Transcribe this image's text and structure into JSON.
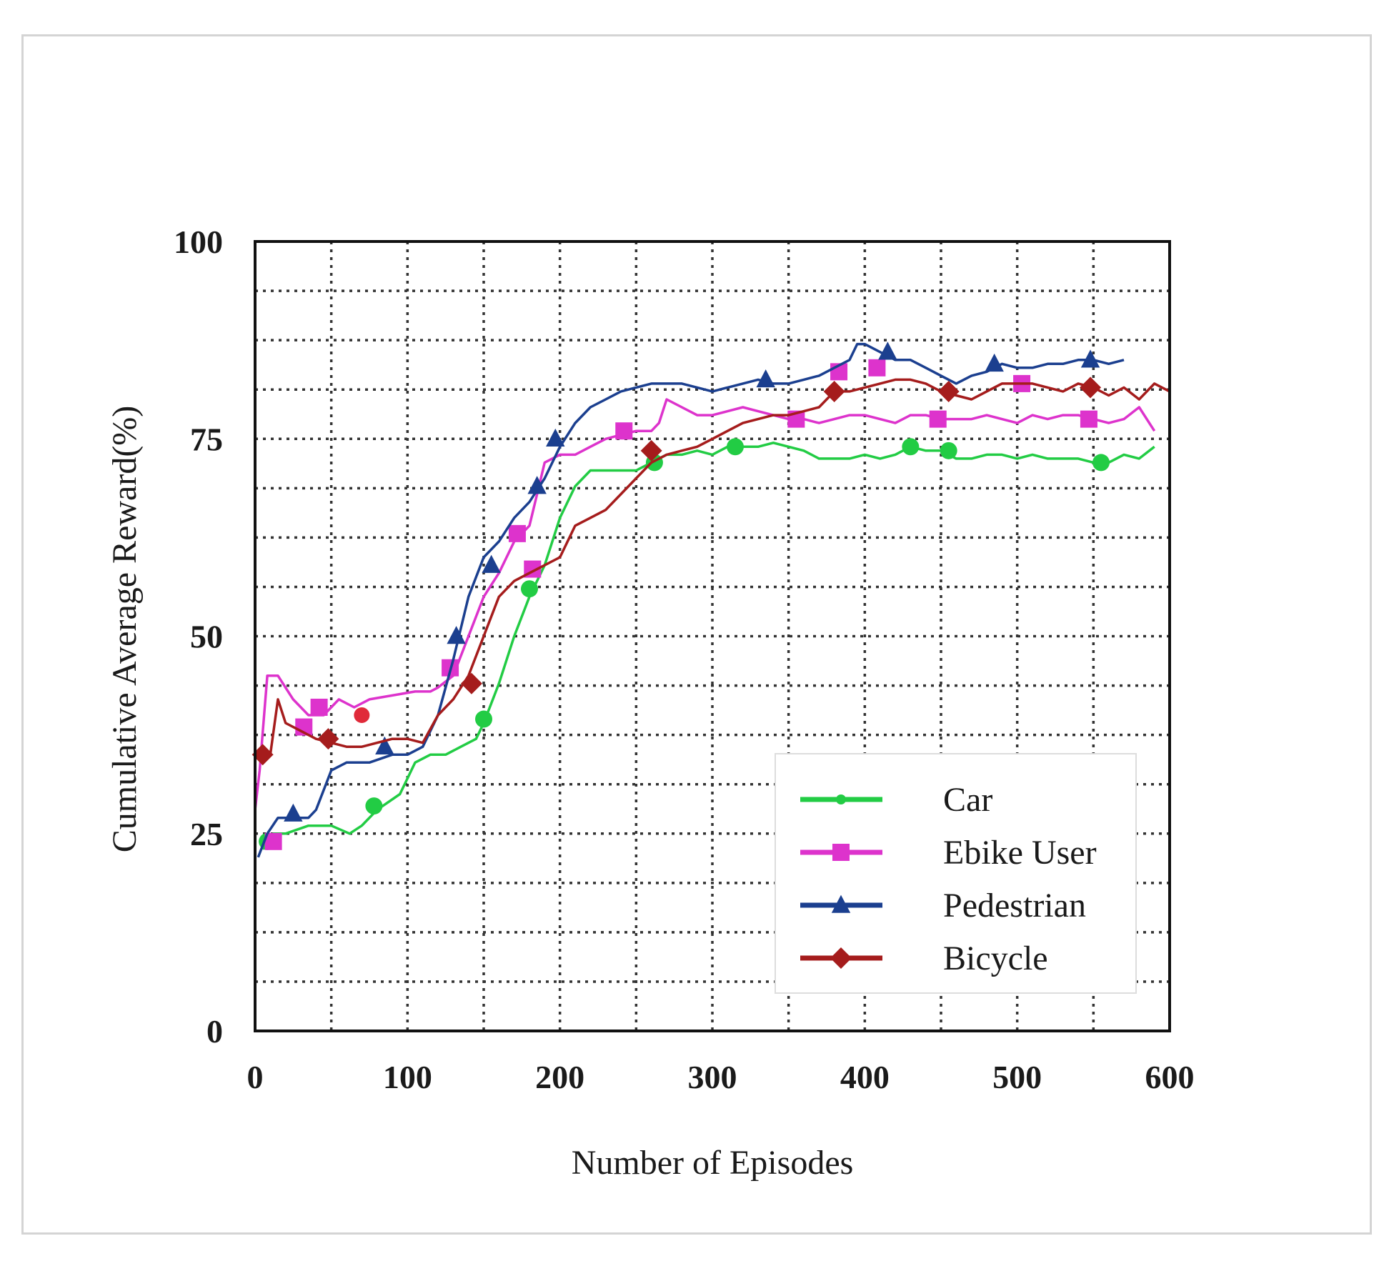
{
  "chart_data": {
    "type": "line",
    "title": "",
    "xlabel": "Number of Episodes",
    "ylabel": "Cumulative Average Reward(%)",
    "xlim": [
      0,
      600
    ],
    "ylim": [
      0,
      100
    ],
    "x_ticks": [
      0,
      100,
      200,
      300,
      400,
      500,
      600
    ],
    "x_tick_labels": [
      "0",
      "100",
      "200",
      "300",
      "400",
      "500",
      "600"
    ],
    "y_ticks": [
      0,
      25,
      50,
      75,
      100
    ],
    "y_tick_labels": [
      "0",
      "25",
      "50",
      "75",
      "100"
    ],
    "x_grid_step": 50,
    "y_grid_step": 6.25,
    "grid": true,
    "legend_position": "bottom-right",
    "series": [
      {
        "name": "Car",
        "color": "#22cc44",
        "marker": "circle",
        "x": [
          5,
          12,
          20,
          35,
          50,
          62,
          70,
          80,
          95,
          105,
          115,
          125,
          135,
          145,
          150,
          160,
          170,
          180,
          190,
          200,
          210,
          220,
          230,
          240,
          250,
          260,
          270,
          280,
          290,
          300,
          310,
          320,
          330,
          340,
          350,
          360,
          370,
          380,
          390,
          400,
          410,
          420,
          430,
          440,
          450,
          460,
          470,
          480,
          490,
          500,
          510,
          520,
          530,
          540,
          550,
          560,
          570,
          580,
          590
        ],
        "y": [
          23,
          25,
          25,
          26,
          26,
          25,
          26,
          28,
          30,
          34,
          35,
          35,
          36,
          37,
          39,
          44,
          50,
          55,
          59,
          65,
          69,
          71,
          71,
          71,
          71,
          72,
          73,
          73,
          73.5,
          73,
          74,
          74,
          74,
          74.5,
          74,
          73.5,
          72.5,
          72.5,
          72.5,
          73,
          72.5,
          73,
          74,
          73.5,
          73.5,
          72.5,
          72.5,
          73,
          73,
          72.5,
          73,
          72.5,
          72.5,
          72.5,
          72,
          72,
          73,
          72.5,
          74
        ],
        "marker_x": [
          8,
          78,
          150,
          180,
          262,
          315,
          430,
          455,
          555
        ],
        "marker_y": [
          24,
          28.5,
          39.5,
          56,
          72,
          74,
          74,
          73.5,
          72
        ]
      },
      {
        "name": "Ebike User",
        "color": "#dd33cc",
        "marker": "square",
        "x": [
          0,
          3,
          8,
          15,
          25,
          35,
          45,
          55,
          65,
          75,
          90,
          105,
          115,
          120,
          130,
          140,
          150,
          160,
          170,
          180,
          185,
          190,
          200,
          210,
          220,
          230,
          240,
          250,
          260,
          265,
          270,
          280,
          290,
          300,
          310,
          320,
          330,
          340,
          350,
          360,
          370,
          380,
          390,
          400,
          410,
          420,
          430,
          440,
          450,
          460,
          470,
          480,
          490,
          500,
          510,
          520,
          530,
          540,
          550,
          560,
          570,
          580,
          590
        ],
        "y": [
          28,
          33,
          45,
          45,
          42,
          40,
          40,
          42,
          41,
          42,
          42.5,
          43,
          43,
          43.5,
          45,
          50,
          55,
          58,
          62,
          64,
          68,
          72,
          73,
          73,
          74,
          75,
          75.5,
          76,
          76,
          77,
          80,
          79,
          78,
          78,
          78.5,
          79,
          78.5,
          78,
          77.5,
          77.5,
          77,
          77.5,
          78,
          78,
          77.5,
          77,
          78,
          78,
          77.5,
          77.5,
          77.5,
          78,
          77.5,
          77,
          78,
          77.5,
          78,
          78,
          77.5,
          77,
          77.5,
          79,
          76
        ],
        "marker_x": [
          12,
          32,
          42,
          128,
          172,
          182,
          242,
          355,
          383,
          408,
          448,
          503,
          547
        ],
        "marker_y": [
          24,
          38.5,
          41,
          46,
          63,
          58.5,
          76,
          77.5,
          83.5,
          84,
          77.5,
          82,
          77.5
        ],
        "extra_marker_x": [
          70
        ],
        "extra_marker_y": [
          40
        ]
      },
      {
        "name": "Pedestrian",
        "color": "#1b3f8f",
        "marker": "triangle",
        "x": [
          2,
          8,
          15,
          25,
          35,
          40,
          50,
          60,
          75,
          90,
          100,
          110,
          120,
          130,
          140,
          150,
          160,
          170,
          180,
          190,
          200,
          210,
          220,
          230,
          240,
          250,
          260,
          270,
          280,
          290,
          300,
          310,
          320,
          330,
          340,
          350,
          360,
          370,
          380,
          390,
          395,
          400,
          410,
          420,
          430,
          440,
          450,
          460,
          470,
          480,
          490,
          500,
          510,
          520,
          530,
          540,
          550,
          560,
          570
        ],
        "y": [
          22,
          25,
          27,
          27,
          27,
          28,
          33,
          34,
          34,
          35,
          35,
          36,
          40,
          47,
          55,
          60,
          62,
          65,
          67,
          70,
          74,
          77,
          79,
          80,
          81,
          81.5,
          82,
          82,
          82,
          81.5,
          81,
          81.5,
          82,
          82.5,
          82,
          82,
          82.5,
          83,
          84,
          85,
          87,
          87,
          86,
          85,
          85,
          84,
          83,
          82,
          83,
          83.5,
          84.5,
          84,
          84,
          84.5,
          84.5,
          85,
          85,
          84.5,
          85
        ],
        "marker_x": [
          25,
          85,
          132,
          155,
          185,
          197,
          335,
          415,
          485,
          548
        ],
        "marker_y": [
          27.5,
          36,
          50,
          59,
          69,
          75,
          82.5,
          86,
          84.5,
          85
        ]
      },
      {
        "name": "Bicycle",
        "color": "#a51c1c",
        "marker": "diamond",
        "x": [
          0,
          5,
          10,
          15,
          20,
          30,
          40,
          50,
          60,
          70,
          80,
          90,
          100,
          110,
          120,
          130,
          140,
          150,
          160,
          170,
          180,
          190,
          200,
          210,
          220,
          230,
          240,
          250,
          260,
          270,
          280,
          290,
          300,
          310,
          320,
          330,
          340,
          350,
          360,
          370,
          380,
          390,
          400,
          410,
          420,
          430,
          440,
          450,
          460,
          470,
          480,
          490,
          500,
          510,
          520,
          530,
          540,
          550,
          560,
          570,
          580,
          590,
          600
        ],
        "y": [
          35,
          34,
          35,
          42,
          39,
          38,
          37,
          36.5,
          36,
          36,
          36.5,
          37,
          37,
          36.5,
          40,
          42,
          45,
          50,
          55,
          57,
          58,
          59,
          60,
          64,
          65,
          66,
          68,
          70,
          72,
          73,
          73.5,
          74,
          75,
          76,
          77,
          77.5,
          78,
          78,
          78.5,
          79,
          81,
          81,
          81.5,
          82,
          82.5,
          82.5,
          82,
          81,
          80.5,
          80,
          81,
          82,
          82,
          82,
          81.5,
          81,
          82,
          81.5,
          80.5,
          81.5,
          80,
          82,
          81
        ],
        "marker_x": [
          5,
          48,
          142,
          260,
          380,
          455,
          548
        ],
        "marker_y": [
          35,
          37,
          44,
          73.5,
          81,
          81,
          81.5
        ]
      }
    ]
  }
}
